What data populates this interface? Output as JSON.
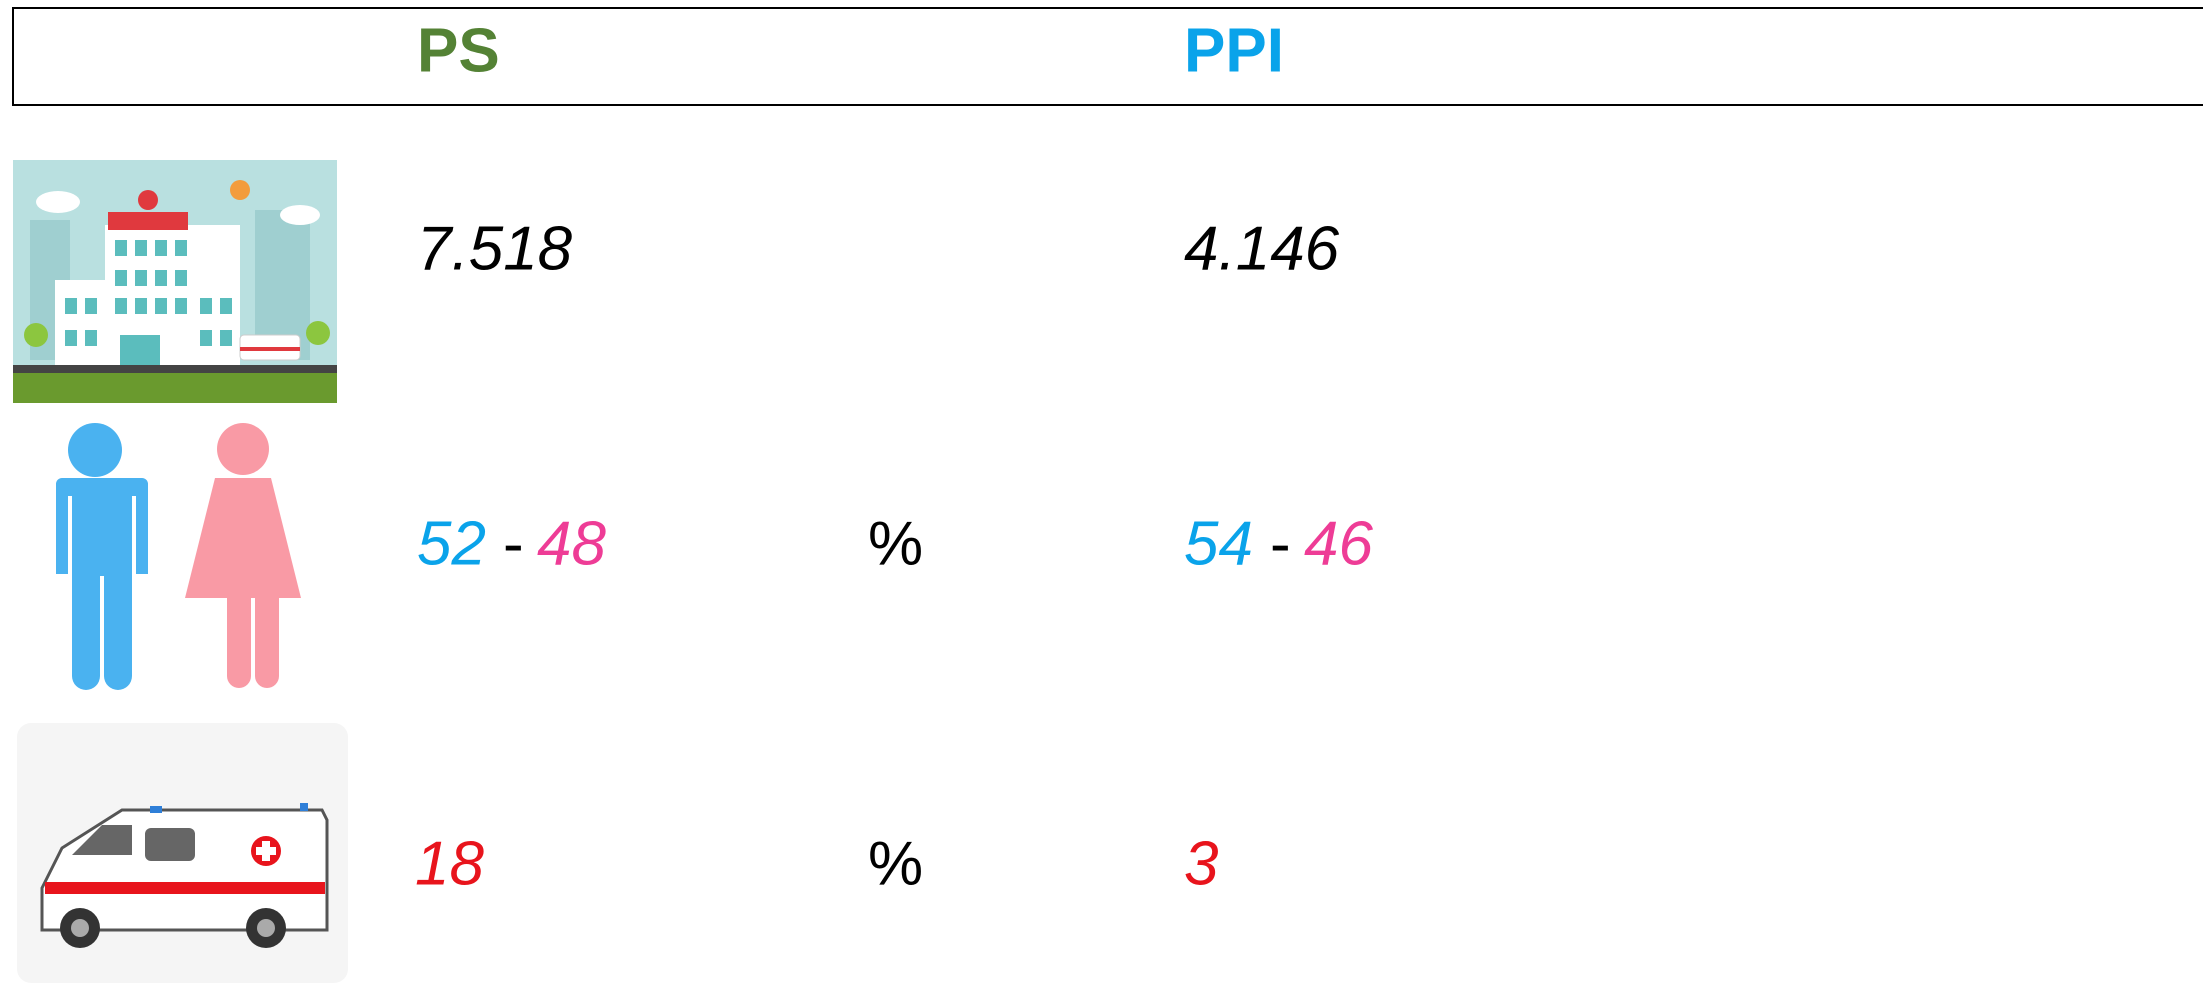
{
  "header": {
    "ps": "PS",
    "ppi": "PPI"
  },
  "rows": [
    {
      "ps": "7.518",
      "ppi": "4.146"
    },
    {
      "ps_male": "52",
      "ps_sep": "-",
      "ps_female": "48",
      "unit": "%",
      "ppi_male": "54",
      "ppi_sep": "-",
      "ppi_female": "46"
    },
    {
      "ps": "18",
      "unit": "%",
      "ppi": "3"
    }
  ]
}
